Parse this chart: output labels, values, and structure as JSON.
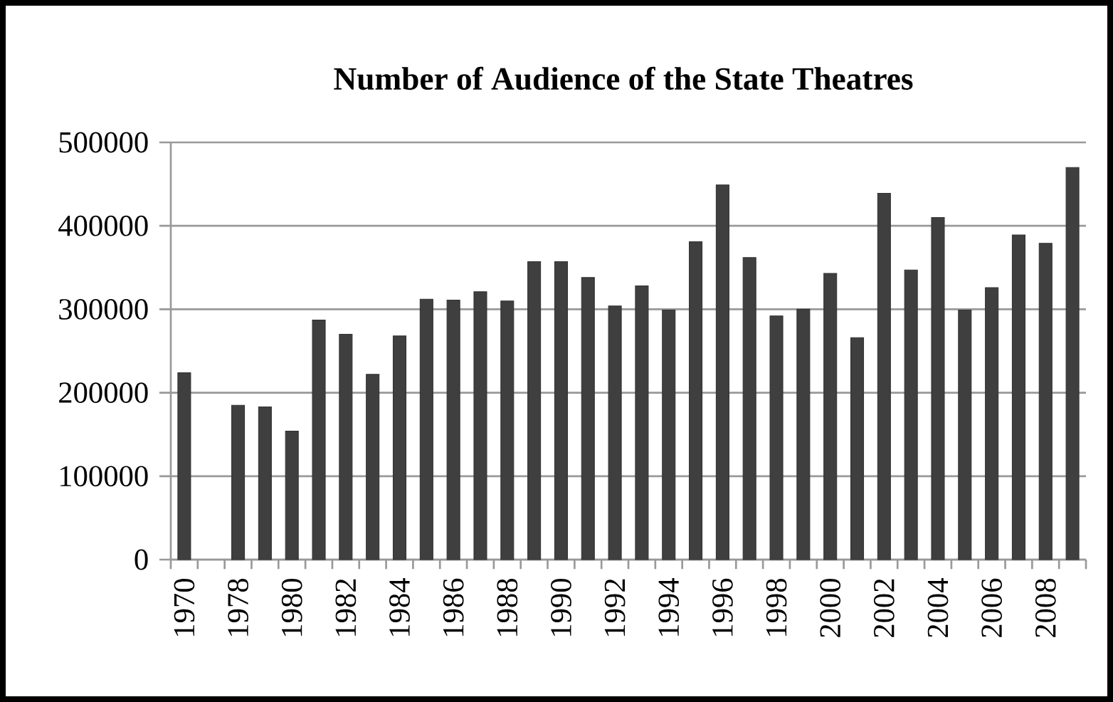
{
  "chart_data": {
    "type": "bar",
    "title": "Number of Audience of the State Theatres",
    "categories": [
      "1970",
      null,
      "1978",
      null,
      "1980",
      null,
      "1982",
      null,
      "1984",
      null,
      "1986",
      null,
      "1988",
      null,
      "1990",
      null,
      "1992",
      null,
      "1994",
      null,
      "1996",
      null,
      "1998",
      null,
      "2000",
      null,
      "2002",
      null,
      "2004",
      null,
      "2006",
      null,
      "2008",
      null
    ],
    "values": [
      224000,
      null,
      185000,
      183000,
      154000,
      287000,
      270000,
      222000,
      268000,
      312000,
      311000,
      321000,
      310000,
      357000,
      357000,
      338000,
      304000,
      328000,
      299000,
      381000,
      449000,
      362000,
      292000,
      300000,
      343000,
      266000,
      439000,
      347000,
      410000,
      299000,
      326000,
      389000,
      379000,
      470000
    ],
    "color": "#3f3f3f",
    "ylim": [
      0,
      500000
    ],
    "yticks": [
      0,
      100000,
      200000,
      300000,
      400000,
      500000
    ],
    "grid": "y"
  }
}
